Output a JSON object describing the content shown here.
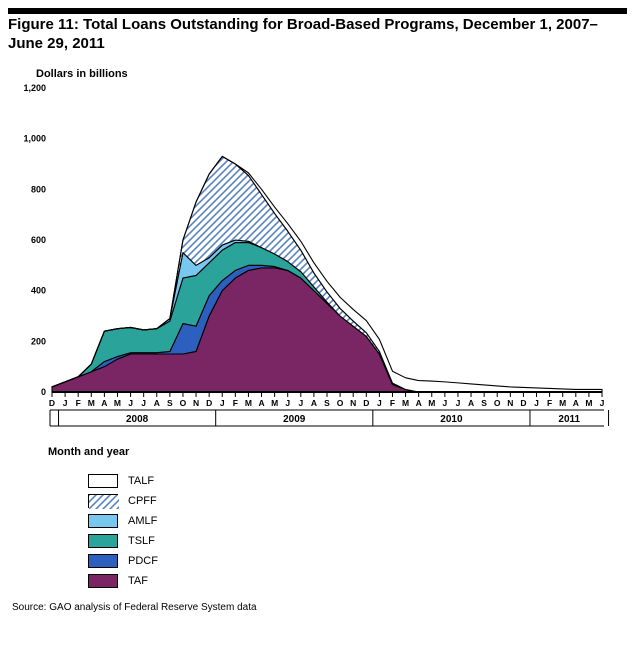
{
  "figure": {
    "title_line1": "Figure 11: Total Loans Outstanding for Broad-Based Programs, December 1, 2007–",
    "title_line2": "June 29, 2011",
    "y_axis_label": "Dollars in billions",
    "x_axis_label": "Month and year",
    "source": "Source: GAO analysis of Federal Reserve System data",
    "type": "stacked-area",
    "ylim": [
      0,
      1200
    ],
    "ytick_step": 200,
    "yticks": [
      0,
      200,
      400,
      600,
      800,
      1000,
      1200
    ],
    "x_months": [
      "D",
      "J",
      "F",
      "M",
      "A",
      "M",
      "J",
      "J",
      "A",
      "S",
      "O",
      "N",
      "D",
      "J",
      "F",
      "M",
      "A",
      "M",
      "J",
      "J",
      "A",
      "S",
      "O",
      "N",
      "D",
      "J",
      "F",
      "M",
      "A",
      "M",
      "J",
      "J",
      "A",
      "S",
      "O",
      "N",
      "D",
      "J",
      "F",
      "M",
      "A",
      "M",
      "J"
    ],
    "x_years": [
      {
        "label": "2008",
        "pos_index": 1
      },
      {
        "label": "2009",
        "pos_index": 13
      },
      {
        "label": "2010",
        "pos_index": 25
      },
      {
        "label": "2011",
        "pos_index": 37
      }
    ],
    "series_order": [
      "TAF",
      "PDCF",
      "TSLF",
      "AMLF",
      "CPFF",
      "TALF"
    ],
    "colors": {
      "TAF": "#7a2665",
      "PDCF": "#2d5fbf",
      "TSLF": "#2aa39a",
      "AMLF": "#77c7ee",
      "CPFF": "#5a84c1",
      "TALF": "#ffffff",
      "stroke": "#000000",
      "axis": "#000000",
      "year_divider": "#000000",
      "background": "#ffffff"
    },
    "legend": [
      {
        "key": "TALF",
        "label": "TALF",
        "fill": "none-white"
      },
      {
        "key": "CPFF",
        "label": "CPFF",
        "fill": "hatch"
      },
      {
        "key": "AMLF",
        "label": "AMLF",
        "fill": "solid"
      },
      {
        "key": "TSLF",
        "label": "TSLF",
        "fill": "solid"
      },
      {
        "key": "PDCF",
        "label": "PDCF",
        "fill": "solid"
      },
      {
        "key": "TAF",
        "label": "TAF",
        "fill": "solid"
      }
    ],
    "data": {
      "TAF": [
        20,
        40,
        60,
        80,
        100,
        130,
        150,
        150,
        150,
        150,
        150,
        160,
        300,
        400,
        450,
        480,
        490,
        490,
        480,
        450,
        400,
        350,
        300,
        260,
        220,
        150,
        30,
        10,
        0,
        0,
        0,
        0,
        0,
        0,
        0,
        0,
        0,
        0,
        0,
        0,
        0,
        0,
        0
      ],
      "PDCF": [
        0,
        0,
        0,
        0,
        20,
        10,
        5,
        5,
        5,
        10,
        120,
        100,
        80,
        40,
        30,
        20,
        10,
        5,
        0,
        0,
        0,
        0,
        0,
        0,
        0,
        0,
        0,
        0,
        0,
        0,
        0,
        0,
        0,
        0,
        0,
        0,
        0,
        0,
        0,
        0,
        0,
        0,
        0
      ],
      "TSLF": [
        0,
        0,
        0,
        30,
        120,
        110,
        100,
        90,
        95,
        120,
        180,
        200,
        130,
        120,
        110,
        90,
        70,
        50,
        35,
        25,
        15,
        5,
        0,
        0,
        0,
        0,
        0,
        0,
        0,
        0,
        0,
        0,
        0,
        0,
        0,
        0,
        0,
        0,
        0,
        0,
        0,
        0,
        0
      ],
      "AMLF": [
        0,
        0,
        0,
        0,
        0,
        0,
        0,
        0,
        0,
        10,
        100,
        40,
        20,
        20,
        10,
        5,
        0,
        0,
        0,
        0,
        0,
        0,
        0,
        0,
        0,
        0,
        0,
        0,
        0,
        0,
        0,
        0,
        0,
        0,
        0,
        0,
        0,
        0,
        0,
        0,
        0,
        0,
        0
      ],
      "CPFF": [
        0,
        0,
        0,
        0,
        0,
        0,
        0,
        0,
        0,
        0,
        50,
        250,
        330,
        350,
        300,
        260,
        210,
        160,
        120,
        85,
        55,
        40,
        30,
        20,
        14,
        10,
        5,
        0,
        0,
        0,
        0,
        0,
        0,
        0,
        0,
        0,
        0,
        0,
        0,
        0,
        0,
        0,
        0
      ],
      "TALF": [
        0,
        0,
        0,
        0,
        0,
        0,
        0,
        0,
        0,
        0,
        0,
        0,
        0,
        0,
        0,
        10,
        20,
        25,
        30,
        35,
        40,
        42,
        44,
        46,
        48,
        48,
        47,
        46,
        45,
        43,
        40,
        36,
        32,
        28,
        24,
        20,
        18,
        16,
        14,
        12,
        10,
        10,
        10
      ]
    },
    "title_fontsize": 15,
    "axis_fontsize": 11,
    "tick_fontsize": 9,
    "line_width": 1.1
  }
}
